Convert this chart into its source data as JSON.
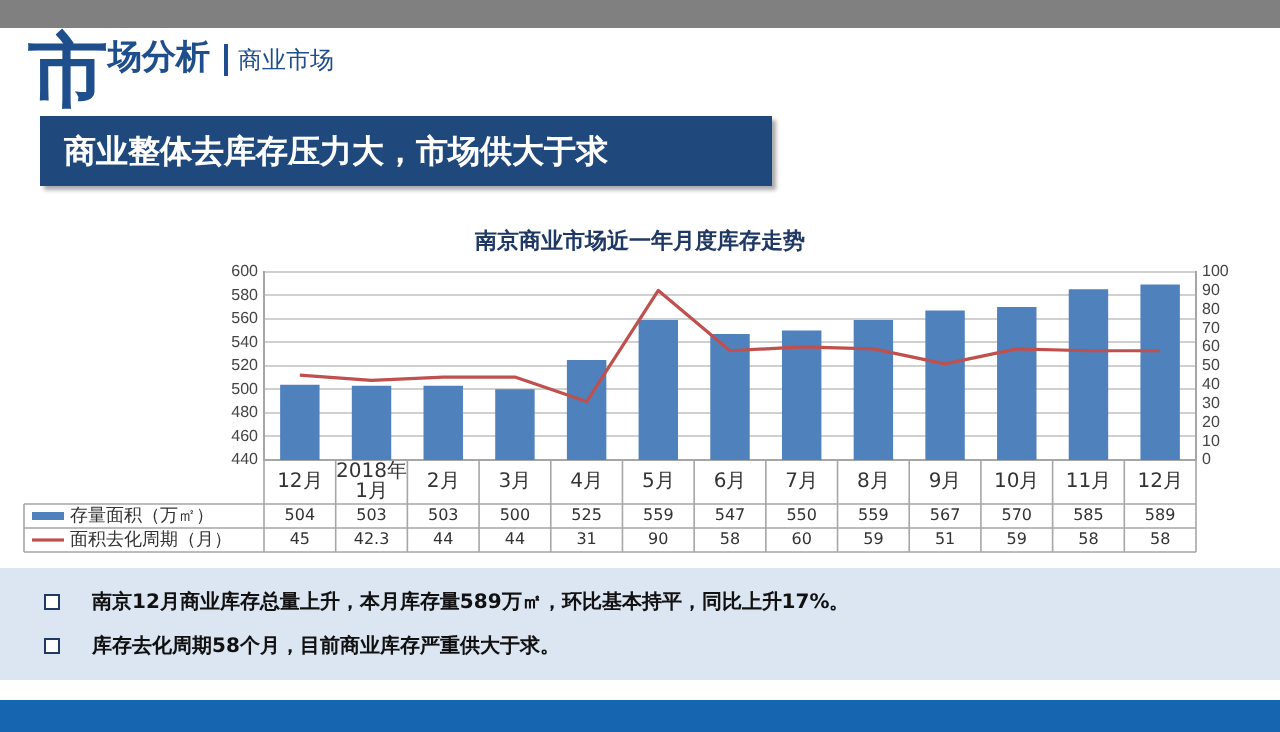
{
  "chart_data": {
    "type": "bar",
    "title": "南京商业市场近一年月度库存走势",
    "annotations": [
      "市场分析",
      "商业市场",
      "商业整体去库存压力大，市场供大于求",
      "南京12月商业库存总量上升，本月库存量589万㎡，环比基本持平，同比上升17%。",
      "库存去化周期58个月，目前商业库存严重供大于求。"
    ],
    "categories": [
      "12月",
      "2018年1月",
      "2月",
      "3月",
      "4月",
      "5月",
      "6月",
      "7月",
      "8月",
      "9月",
      "10月",
      "11月",
      "12月"
    ],
    "series": [
      {
        "name": "存量面积（万㎡）",
        "color": "#4f81bd",
        "values": [
          504,
          503,
          503,
          500,
          525,
          559,
          547,
          550,
          559,
          567,
          570,
          585,
          589
        ]
      },
      {
        "name": "面积去化周期（月）",
        "type": "line",
        "axis": "y2",
        "color": "#c0504d",
        "values": [
          45,
          42.3,
          44,
          44,
          31,
          90,
          58,
          60,
          59,
          51,
          59,
          58,
          58
        ]
      }
    ],
    "ylim": [
      440,
      600
    ],
    "yticks": [
      440,
      460,
      480,
      500,
      520,
      540,
      560,
      580,
      600
    ],
    "y2lim": [
      0,
      100
    ],
    "y2ticks": [
      0,
      10,
      20,
      30,
      40,
      50,
      60,
      70,
      80,
      90,
      100
    ],
    "grid": "y",
    "legend": "bottom",
    "data_labels": true,
    "marker": "none",
    "line_style": "solid"
  }
}
